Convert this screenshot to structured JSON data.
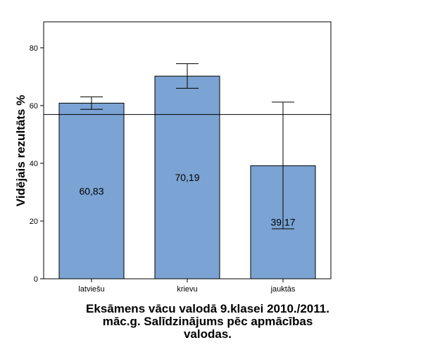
{
  "chart_data": {
    "type": "bar",
    "ylabel": "Vidējais rezultāts %",
    "title_lines": [
      "Eksāmens vācu valodā 9.klasei 2010./2011.",
      "māc.g. Salīdzinājums pēc apmācības",
      "valodas."
    ],
    "categories": [
      "latviešu",
      "krievu",
      "jauktās"
    ],
    "values": [
      60.83,
      70.19,
      39.17
    ],
    "value_labels": [
      "60,83",
      "70,19",
      "39,17"
    ],
    "error_low": [
      58.7,
      66.0,
      17.3
    ],
    "error_high": [
      63.0,
      74.5,
      61.2
    ],
    "reference_line": 56.9,
    "ylim": [
      0,
      89
    ],
    "yticks": [
      0,
      20,
      40,
      60,
      80
    ],
    "bar_color": "#7ba3d3",
    "grid": false
  }
}
